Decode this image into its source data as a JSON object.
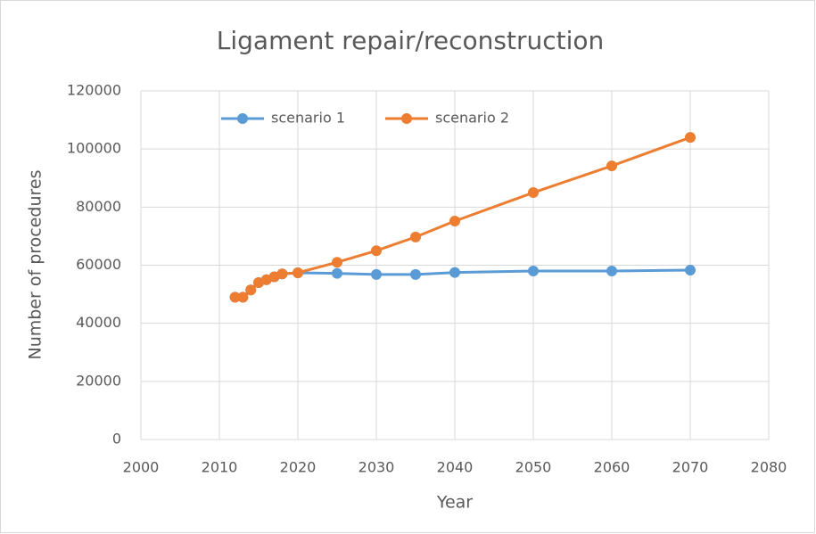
{
  "chart_data": {
    "type": "line",
    "title": "Ligament repair/reconstruction",
    "x_label": "Year",
    "y_label": "Number of procedures",
    "x": [
      2012,
      2013,
      2014,
      2015,
      2016,
      2017,
      2018,
      2020,
      2025,
      2030,
      2035,
      2040,
      2050,
      2060,
      2070
    ],
    "series": [
      {
        "name": "scenario 1",
        "color": "#5b9bd5",
        "values": [
          49000,
          49000,
          51500,
          54000,
          55000,
          56000,
          57000,
          57400,
          57200,
          56800,
          56800,
          57500,
          58000,
          58000,
          58300
        ]
      },
      {
        "name": "scenario 2",
        "color": "#ed7d31",
        "values": [
          49000,
          49000,
          51500,
          54000,
          55000,
          56000,
          57000,
          57400,
          61000,
          65000,
          69700,
          75200,
          85000,
          94200,
          104000
        ]
      }
    ],
    "xlim": [
      2000,
      2080
    ],
    "xticks": [
      2000,
      2010,
      2020,
      2030,
      2040,
      2050,
      2060,
      2070,
      2080
    ],
    "ylim": [
      0,
      120000
    ],
    "yticks": [
      0,
      20000,
      40000,
      60000,
      80000,
      100000,
      120000
    ],
    "grid": true,
    "legend": "top"
  }
}
